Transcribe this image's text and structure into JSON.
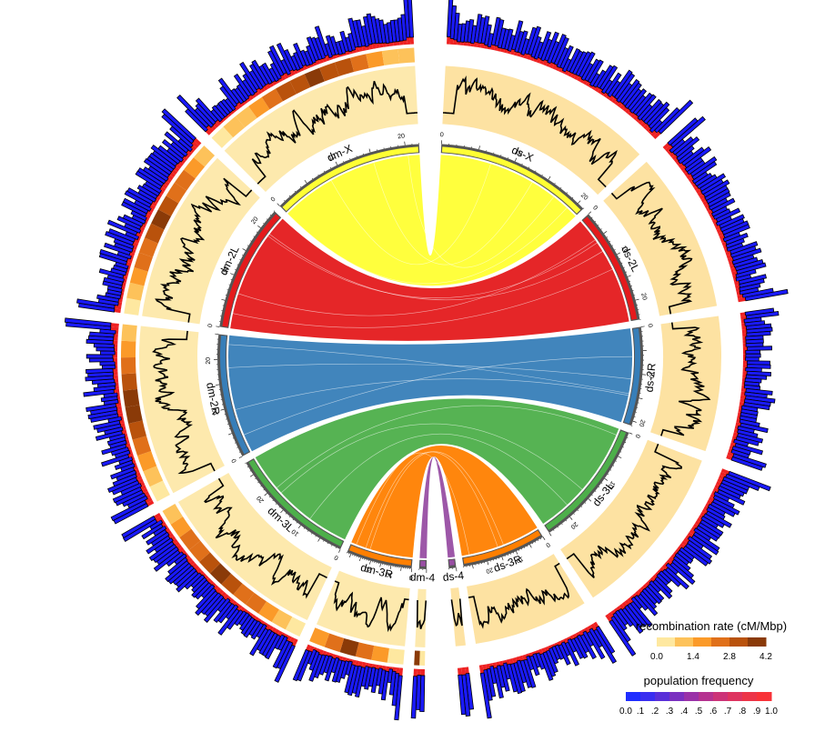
{
  "chromosomes": [
    {
      "id": "dm-X",
      "label": "dm-X",
      "species": "dm",
      "length_mb": 22.4,
      "color": "#ffff33",
      "ticks": [
        "0",
        "10",
        "20"
      ]
    },
    {
      "id": "dm-2L",
      "label": "dm-2L",
      "species": "dm",
      "length_mb": 23.5,
      "color": "#e41a1c",
      "ticks": [
        "0",
        "10",
        "20"
      ]
    },
    {
      "id": "dm-2R",
      "label": "dm-2R",
      "species": "dm",
      "length_mb": 25.3,
      "color": "#377eb8",
      "ticks": [
        "0",
        "10",
        "20"
      ]
    },
    {
      "id": "dm-3L",
      "label": "dm-3L",
      "species": "dm",
      "length_mb": 28.1,
      "color": "#4daf4a",
      "ticks": [
        "0",
        "10",
        "20"
      ]
    },
    {
      "id": "dm-3R",
      "label": "dm-3R",
      "species": "dm",
      "length_mb": 32.0,
      "color": "#ff7f00",
      "ticks": [
        "0",
        "10",
        "20"
      ]
    },
    {
      "id": "dm-4",
      "label": "dm-4",
      "species": "dm",
      "length_mb": 1.35,
      "color": "#984ea3",
      "ticks": []
    },
    {
      "id": "ds-4",
      "label": "ds-4",
      "species": "ds",
      "length_mb": 1.3,
      "color": "#984ea3",
      "ticks": []
    },
    {
      "id": "ds-3R",
      "label": "ds-3R",
      "species": "ds",
      "length_mb": 27.9,
      "color": "#ff7f00",
      "ticks": [
        "0",
        "10",
        "20"
      ]
    },
    {
      "id": "ds-3L",
      "label": "ds-3L",
      "species": "ds",
      "length_mb": 24.5,
      "color": "#4daf4a",
      "ticks": [
        "0",
        "10",
        "20"
      ]
    },
    {
      "id": "ds-2R",
      "label": "ds-2R",
      "species": "ds",
      "length_mb": 21.2,
      "color": "#377eb8",
      "ticks": [
        "0",
        "10",
        "20"
      ]
    },
    {
      "id": "ds-2L",
      "label": "ds-2L",
      "species": "ds",
      "length_mb": 24.3,
      "color": "#e41a1c",
      "ticks": [
        "0",
        "10",
        "20"
      ]
    },
    {
      "id": "ds-X",
      "label": "ds-X",
      "species": "ds",
      "length_mb": 21.0,
      "color": "#ffff33",
      "ticks": [
        "0",
        "10",
        "20"
      ]
    }
  ],
  "links": [
    {
      "from": "dm-X",
      "to": "ds-X",
      "color": "#ffff33"
    },
    {
      "from": "dm-2L",
      "to": "ds-2L",
      "color": "#e41a1c"
    },
    {
      "from": "dm-2R",
      "to": "ds-2R",
      "color": "#377eb8"
    },
    {
      "from": "dm-3L",
      "to": "ds-3L",
      "color": "#4daf4a"
    },
    {
      "from": "dm-3R",
      "to": "ds-3R",
      "color": "#ff7f00"
    },
    {
      "from": "dm-4",
      "to": "ds-4",
      "color": "#984ea3"
    }
  ],
  "legends": {
    "recombination": {
      "title": "recombination rate (cM/Mbp)",
      "ticks": [
        "0.0",
        "1.4",
        "2.8",
        "4.2"
      ],
      "colors": [
        "#fee8a0",
        "#fdc25a",
        "#fb9a29",
        "#e0701a",
        "#b9520c",
        "#8a3a08"
      ]
    },
    "frequency": {
      "title": "population frequency",
      "ticks": [
        "0.0",
        ".1",
        ".2",
        ".3",
        ".4",
        ".5",
        ".6",
        ".7",
        ".8",
        ".9",
        "1.0"
      ],
      "colors": [
        "#1f2dff",
        "#3a2ef0",
        "#5a2fd8",
        "#7a30c0",
        "#9a31a8",
        "#b53290",
        "#cc3378",
        "#de3460",
        "#ec3448",
        "#f83238"
      ]
    }
  },
  "tracks": {
    "recomb_band_color": "#fde9ad",
    "recomb_band_color_ds": "#fde2a2",
    "line_color": "#000000",
    "freq_low": "#1a1aff",
    "freq_high": "#ee2222"
  }
}
